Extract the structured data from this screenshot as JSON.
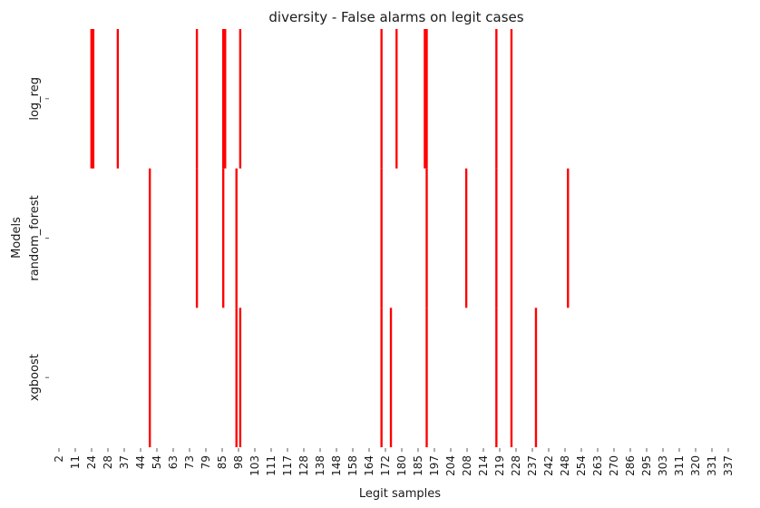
{
  "chart_data": {
    "type": "heatmap",
    "title": "diversity - False alarms on legit cases",
    "xlabel": "Legit samples",
    "ylabel": "Models",
    "rows": [
      "log_reg",
      "random_forest",
      "xgboost"
    ],
    "x_tick_labels": [
      "2",
      "11",
      "24",
      "28",
      "37",
      "44",
      "54",
      "63",
      "73",
      "79",
      "85",
      "98",
      "103",
      "111",
      "117",
      "128",
      "138",
      "148",
      "158",
      "164",
      "172",
      "180",
      "185",
      "197",
      "204",
      "208",
      "214",
      "219",
      "228",
      "237",
      "242",
      "248",
      "254",
      "263",
      "270",
      "286",
      "295",
      "303",
      "311",
      "320",
      "331",
      "337"
    ],
    "column_count": 364,
    "grid": false,
    "colors": {
      "alarm": "#ff0000",
      "no_alarm": "#ffffff"
    },
    "alarms": [
      {
        "row": "log_reg",
        "column_index": 21
      },
      {
        "row": "log_reg",
        "column_index": 22
      },
      {
        "row": "log_reg",
        "column_index": 35
      },
      {
        "row": "log_reg",
        "column_index": 77
      },
      {
        "row": "log_reg",
        "column_index": 91
      },
      {
        "row": "log_reg",
        "column_index": 92
      },
      {
        "row": "log_reg",
        "column_index": 100
      },
      {
        "row": "log_reg",
        "column_index": 175
      },
      {
        "row": "log_reg",
        "column_index": 183
      },
      {
        "row": "log_reg",
        "column_index": 198
      },
      {
        "row": "log_reg",
        "column_index": 199
      },
      {
        "row": "log_reg",
        "column_index": 236
      },
      {
        "row": "log_reg",
        "column_index": 244
      },
      {
        "row": "random_forest",
        "column_index": 52
      },
      {
        "row": "random_forest",
        "column_index": 77
      },
      {
        "row": "random_forest",
        "column_index": 91
      },
      {
        "row": "random_forest",
        "column_index": 98
      },
      {
        "row": "random_forest",
        "column_index": 175
      },
      {
        "row": "random_forest",
        "column_index": 199
      },
      {
        "row": "random_forest",
        "column_index": 220
      },
      {
        "row": "random_forest",
        "column_index": 236
      },
      {
        "row": "random_forest",
        "column_index": 244
      },
      {
        "row": "random_forest",
        "column_index": 274
      },
      {
        "row": "xgboost",
        "column_index": 52
      },
      {
        "row": "xgboost",
        "column_index": 98
      },
      {
        "row": "xgboost",
        "column_index": 100
      },
      {
        "row": "xgboost",
        "column_index": 175
      },
      {
        "row": "xgboost",
        "column_index": 180
      },
      {
        "row": "xgboost",
        "column_index": 199
      },
      {
        "row": "xgboost",
        "column_index": 236
      },
      {
        "row": "xgboost",
        "column_index": 244
      },
      {
        "row": "xgboost",
        "column_index": 257
      }
    ]
  }
}
